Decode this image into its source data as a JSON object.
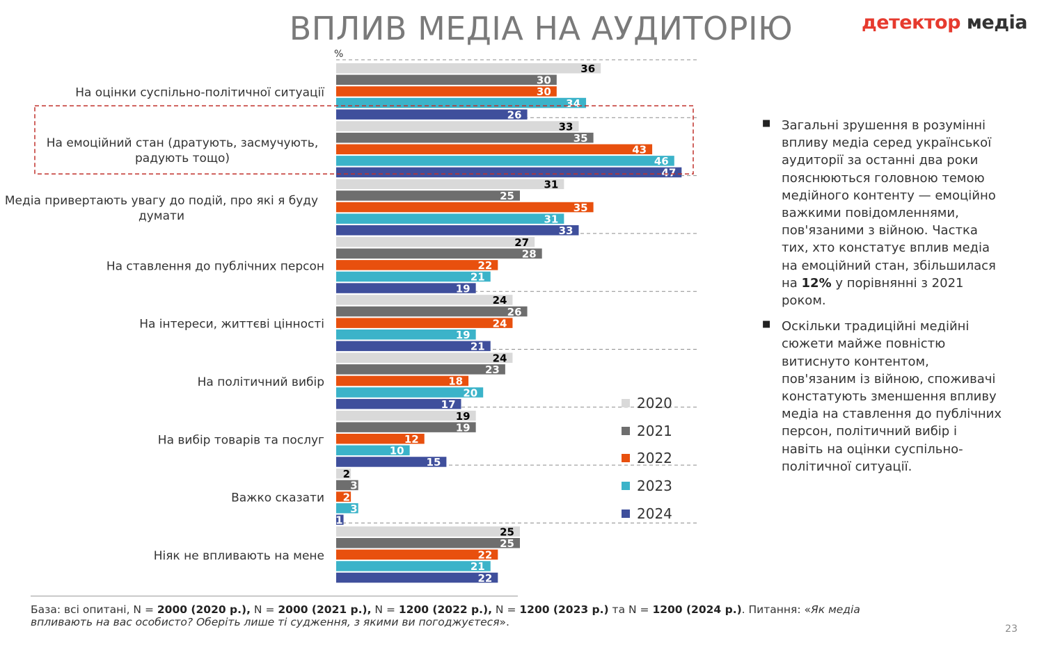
{
  "title": "ВПЛИВ МЕДІА НА АУДИТОРІЮ",
  "logo": {
    "part1": "детектор",
    "part2": " медіа"
  },
  "page_number": "23",
  "chart_data": {
    "type": "bar",
    "orientation": "horizontal",
    "unit_label": "%",
    "categories": [
      "На оцінки суспільно-політичної ситуації",
      "На емоційний стан (дратують, засмучують, радують тощо)",
      "Медіа привертають увагу до подій, про які я буду думати",
      "На ставлення до публічних персон",
      "На інтереси, життєві цінності",
      "На політичний вибір",
      "На вибір товарів та послуг",
      "Важко сказати",
      "Ніяк не впливають на мене"
    ],
    "category_lines": [
      [
        "На оцінки суспільно-політичної ситуації"
      ],
      [
        "На емоційний стан (дратують, засмучують,",
        "радують тощо)"
      ],
      [
        "Медіа привертають увагу до подій, про які я буду",
        "думати"
      ],
      [
        "На ставлення до публічних персон"
      ],
      [
        "На інтереси, життєві цінності"
      ],
      [
        "На політичний вибір"
      ],
      [
        "На вибір товарів та послуг"
      ],
      [
        "Важко сказати"
      ],
      [
        "Ніяк не впливають на мене"
      ]
    ],
    "series": [
      {
        "name": "2020",
        "color": "#d9d9d9",
        "label_color": "#000000",
        "values": [
          36,
          33,
          31,
          27,
          24,
          24,
          19,
          2,
          25
        ]
      },
      {
        "name": "2021",
        "color": "#6e6e6e",
        "label_color": "#ffffff",
        "values": [
          30,
          35,
          25,
          28,
          26,
          23,
          19,
          3,
          25
        ]
      },
      {
        "name": "2022",
        "color": "#e8500e",
        "label_color": "#ffffff",
        "values": [
          30,
          43,
          35,
          22,
          24,
          18,
          12,
          2,
          22
        ]
      },
      {
        "name": "2023",
        "color": "#3bb3c9",
        "label_color": "#ffffff",
        "values": [
          34,
          46,
          31,
          21,
          19,
          20,
          10,
          3,
          21
        ]
      },
      {
        "name": "2024",
        "color": "#3f4f9c",
        "label_color": "#ffffff",
        "values": [
          26,
          47,
          33,
          19,
          21,
          17,
          15,
          1,
          22
        ]
      }
    ],
    "highlighted_category": 1,
    "xlim": [
      0,
      50
    ],
    "legend_position": "right"
  },
  "bullets": [
    {
      "parts": [
        {
          "text": "Загальні зрушення в розумінні впливу медіа серед української аудиторії за останні два роки пояснюються головною темою медійного контенту — емоційно важкими повідомленнями, пов'язаними з війною. Частка тих, хто констатує вплив медіа на емоційний стан, збільшилася на ",
          "bold": false
        },
        {
          "text": "12%",
          "bold": true
        },
        {
          "text": " у порівнянні з 2021 роком.",
          "bold": false
        }
      ]
    },
    {
      "parts": [
        {
          "text": "Оскільки традиційні медійні сюжети майже повністю витиснуто контентом, пов'язаним із війною, споживачі констатують зменшення впливу медіа на ставлення до публічних персон, політичний вибір і навіть на оцінки суспільно-політичної ситуації.",
          "bold": false
        }
      ]
    }
  ],
  "footnote": {
    "parts": [
      {
        "text": "База: всі опитані, N = ",
        "style": "normal"
      },
      {
        "text": "2000 (2020 р.),",
        "style": "bold"
      },
      {
        "text": " N = ",
        "style": "normal"
      },
      {
        "text": "2000 (2021 р.),",
        "style": "bold"
      },
      {
        "text": " N = ",
        "style": "normal"
      },
      {
        "text": "1200 (2022 р.),",
        "style": "bold"
      },
      {
        "text": " N = ",
        "style": "normal"
      },
      {
        "text": "1200 (2023 р.)",
        "style": "bold"
      },
      {
        "text": " та N = ",
        "style": "normal"
      },
      {
        "text": "1200 (2024 р.)",
        "style": "bold"
      },
      {
        "text": ". Питання: «",
        "style": "normal"
      },
      {
        "text": "Як медіа впливають на вас особисто? Оберіть лише ті судження, з якими ви погоджуєтеся",
        "style": "italic"
      },
      {
        "text": "».",
        "style": "normal"
      }
    ]
  }
}
